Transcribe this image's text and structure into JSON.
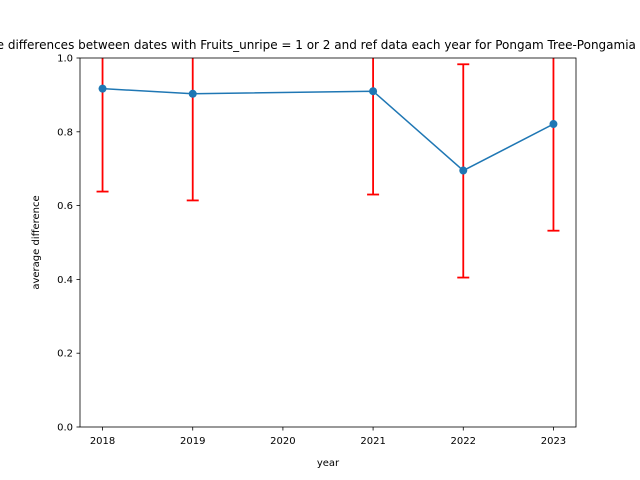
{
  "chart_data": {
    "type": "line",
    "title": "Average differences between dates with Fruits_unripe = 1 or 2 and ref data each year for Pongam Tree-Pongamia pinnata",
    "xlabel": "year",
    "ylabel": "average difference",
    "x_ticks": [
      "2018",
      "2019",
      "2020",
      "2021",
      "2022",
      "2023"
    ],
    "y_ticks": [
      "0.0",
      "0.2",
      "0.4",
      "0.6",
      "0.8",
      "1.0"
    ],
    "xlim": [
      2017.75,
      2023.25
    ],
    "ylim": [
      0,
      1
    ],
    "grid": false,
    "series": [
      {
        "x": [
          2018,
          2019,
          2021,
          2022,
          2023
        ],
        "y": [
          0.917,
          0.903,
          0.91,
          0.695,
          0.821
        ],
        "err_low": [
          0.638,
          0.614,
          0.63,
          0.405,
          0.532
        ],
        "err_high": [
          1.196,
          1.192,
          1.19,
          0.983,
          1.11
        ],
        "color": "#1f77b4",
        "error_color": "#ff0000"
      }
    ]
  }
}
